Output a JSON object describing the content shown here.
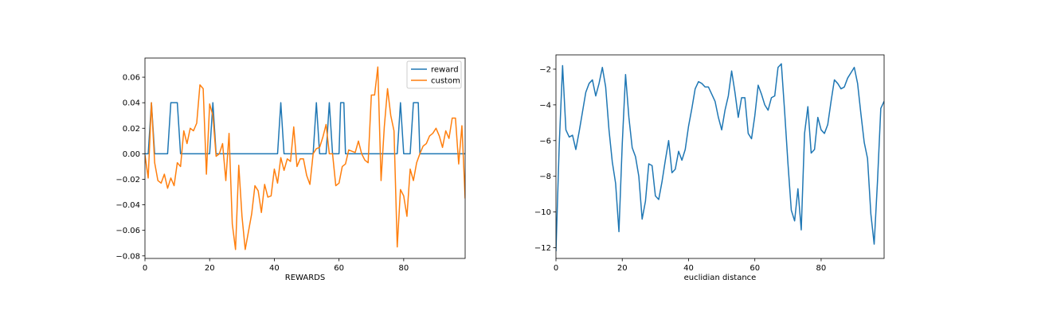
{
  "chart_data": [
    {
      "type": "line",
      "xlabel": "REWARDS",
      "ylabel": "",
      "xlim": [
        0,
        99
      ],
      "ylim": [
        -0.082,
        0.075
      ],
      "xticks": [
        0,
        20,
        40,
        60,
        80
      ],
      "yticks": [
        -0.08,
        -0.06,
        -0.04,
        -0.02,
        0.0,
        0.02,
        0.04,
        0.06
      ],
      "ytick_labels": [
        "−0.08",
        "−0.06",
        "−0.04",
        "−0.02",
        "0.00",
        "0.02",
        "0.04",
        "0.06"
      ],
      "legend": "upper right",
      "grid": false,
      "series": [
        {
          "name": "reward",
          "color": "#1f77b4",
          "points": [
            [
              0,
              0
            ],
            [
              1,
              0
            ],
            [
              2,
              0.04
            ],
            [
              3,
              0
            ],
            [
              7,
              0
            ],
            [
              8,
              0.04
            ],
            [
              10,
              0.04
            ],
            [
              11,
              0
            ],
            [
              20,
              0
            ],
            [
              21,
              0.04
            ],
            [
              22,
              0
            ],
            [
              41,
              0
            ],
            [
              42,
              0.04
            ],
            [
              43,
              0
            ],
            [
              52,
              0
            ],
            [
              53,
              0.04
            ],
            [
              54,
              0
            ],
            [
              56,
              0
            ],
            [
              57,
              0.04
            ],
            [
              58,
              0
            ],
            [
              60,
              0
            ],
            [
              60.5,
              0.04
            ],
            [
              61.5,
              0.04
            ],
            [
              62,
              0
            ],
            [
              78,
              0
            ],
            [
              79,
              0.04
            ],
            [
              80,
              0
            ],
            [
              82,
              0
            ],
            [
              83,
              0.04
            ],
            [
              84.5,
              0.04
            ],
            [
              85,
              0
            ],
            [
              99,
              0
            ]
          ]
        },
        {
          "name": "custom",
          "color": "#ff7f0e",
          "points": [
            [
              0,
              -0.001
            ],
            [
              1,
              -0.019
            ],
            [
              2,
              0.04
            ],
            [
              3,
              -0.007
            ],
            [
              4,
              -0.021
            ],
            [
              5,
              -0.023
            ],
            [
              6,
              -0.016
            ],
            [
              7,
              -0.027
            ],
            [
              8,
              -0.019
            ],
            [
              9,
              -0.025
            ],
            [
              10,
              -0.007
            ],
            [
              11,
              -0.01
            ],
            [
              12,
              0.018
            ],
            [
              13,
              0.008
            ],
            [
              14,
              0.02
            ],
            [
              15,
              0.018
            ],
            [
              16,
              0.024
            ],
            [
              17,
              0.054
            ],
            [
              18,
              0.051
            ],
            [
              19,
              -0.016
            ],
            [
              20,
              0.039
            ],
            [
              21,
              0.03
            ],
            [
              22,
              -0.002
            ],
            [
              23,
              0.0
            ],
            [
              24,
              0.008
            ],
            [
              25,
              -0.021
            ],
            [
              26,
              0.016
            ],
            [
              27,
              -0.055
            ],
            [
              28,
              -0.075
            ],
            [
              29,
              -0.009
            ],
            [
              30,
              -0.049
            ],
            [
              31,
              -0.075
            ],
            [
              32,
              -0.061
            ],
            [
              33,
              -0.047
            ],
            [
              34,
              -0.025
            ],
            [
              35,
              -0.029
            ],
            [
              36,
              -0.046
            ],
            [
              37,
              -0.024
            ],
            [
              38,
              -0.034
            ],
            [
              39,
              -0.033
            ],
            [
              40,
              -0.012
            ],
            [
              41,
              -0.023
            ],
            [
              42,
              -0.003
            ],
            [
              43,
              -0.013
            ],
            [
              44,
              -0.004
            ],
            [
              45,
              -0.006
            ],
            [
              46,
              0.021
            ],
            [
              47,
              -0.01
            ],
            [
              48,
              -0.004
            ],
            [
              49,
              -0.004
            ],
            [
              50,
              -0.017
            ],
            [
              51,
              -0.024
            ],
            [
              52,
              0.0
            ],
            [
              53,
              0.004
            ],
            [
              54,
              0.005
            ],
            [
              55,
              0.013
            ],
            [
              56,
              0.023
            ],
            [
              57,
              0.0
            ],
            [
              58,
              0.0
            ],
            [
              59,
              -0.025
            ],
            [
              60,
              -0.023
            ],
            [
              61,
              -0.01
            ],
            [
              62,
              -0.008
            ],
            [
              63,
              0.003
            ],
            [
              64,
              0.002
            ],
            [
              65,
              0.001
            ],
            [
              66,
              0.01
            ],
            [
              67,
              0.0
            ],
            [
              68,
              -0.005
            ],
            [
              69,
              -0.007
            ],
            [
              70,
              0.046
            ],
            [
              71,
              0.046
            ],
            [
              72,
              0.068
            ],
            [
              73,
              -0.021
            ],
            [
              74,
              0.021
            ],
            [
              75,
              0.051
            ],
            [
              76,
              0.03
            ],
            [
              77,
              0.018
            ],
            [
              78,
              -0.073
            ],
            [
              79,
              -0.028
            ],
            [
              80,
              -0.033
            ],
            [
              81,
              -0.049
            ],
            [
              82,
              -0.012
            ],
            [
              83,
              -0.021
            ],
            [
              84,
              -0.007
            ],
            [
              85,
              0.0
            ],
            [
              86,
              0.006
            ],
            [
              87,
              0.008
            ],
            [
              88,
              0.014
            ],
            [
              89,
              0.016
            ],
            [
              90,
              0.02
            ],
            [
              91,
              0.014
            ],
            [
              92,
              0.005
            ],
            [
              93,
              0.018
            ],
            [
              94,
              0.012
            ],
            [
              95,
              0.028
            ],
            [
              96,
              0.028
            ],
            [
              97,
              -0.008
            ],
            [
              98,
              0.022
            ],
            [
              99,
              -0.035
            ]
          ]
        }
      ]
    },
    {
      "type": "line",
      "xlabel": "euclidian distance",
      "ylabel": "",
      "xlim": [
        0,
        99
      ],
      "ylim": [
        -12.6,
        -1.2
      ],
      "xticks": [
        0,
        20,
        40,
        60,
        80
      ],
      "yticks": [
        -12,
        -10,
        -8,
        -6,
        -4,
        -2
      ],
      "ytick_labels": [
        "−12",
        "−10",
        "−8",
        "−6",
        "−4",
        "−2"
      ],
      "grid": false,
      "series": [
        {
          "color": "#1f77b4",
          "points": [
            [
              0,
              -12.2
            ],
            [
              1,
              -6.2
            ],
            [
              2,
              -1.8
            ],
            [
              3,
              -5.4
            ],
            [
              4,
              -5.8
            ],
            [
              5,
              -5.7
            ],
            [
              6,
              -6.5
            ],
            [
              7,
              -5.5
            ],
            [
              8,
              -4.4
            ],
            [
              9,
              -3.3
            ],
            [
              10,
              -2.8
            ],
            [
              11,
              -2.6
            ],
            [
              12,
              -3.5
            ],
            [
              13,
              -2.8
            ],
            [
              14,
              -1.9
            ],
            [
              15,
              -3.0
            ],
            [
              16,
              -5.4
            ],
            [
              17,
              -7.2
            ],
            [
              18,
              -8.4
            ],
            [
              19,
              -11.1
            ],
            [
              20,
              -6.2
            ],
            [
              21,
              -2.3
            ],
            [
              22,
              -4.7
            ],
            [
              23,
              -6.4
            ],
            [
              24,
              -6.9
            ],
            [
              25,
              -8.0
            ],
            [
              26,
              -10.4
            ],
            [
              27,
              -9.4
            ],
            [
              28,
              -7.3
            ],
            [
              29,
              -7.4
            ],
            [
              30,
              -9.1
            ],
            [
              31,
              -9.3
            ],
            [
              32,
              -8.3
            ],
            [
              33,
              -7.1
            ],
            [
              34,
              -6.0
            ],
            [
              35,
              -7.8
            ],
            [
              36,
              -7.6
            ],
            [
              37,
              -6.6
            ],
            [
              38,
              -7.1
            ],
            [
              39,
              -6.5
            ],
            [
              40,
              -5.2
            ],
            [
              41,
              -4.2
            ],
            [
              42,
              -3.1
            ],
            [
              43,
              -2.7
            ],
            [
              44,
              -2.8
            ],
            [
              45,
              -3.0
            ],
            [
              46,
              -3.0
            ],
            [
              47,
              -3.4
            ],
            [
              48,
              -3.8
            ],
            [
              49,
              -4.7
            ],
            [
              50,
              -5.4
            ],
            [
              51,
              -4.3
            ],
            [
              52,
              -3.5
            ],
            [
              53,
              -2.1
            ],
            [
              54,
              -3.3
            ],
            [
              55,
              -4.7
            ],
            [
              56,
              -3.6
            ],
            [
              57,
              -3.6
            ],
            [
              58,
              -5.6
            ],
            [
              59,
              -5.9
            ],
            [
              60,
              -4.6
            ],
            [
              61,
              -2.9
            ],
            [
              62,
              -3.4
            ],
            [
              63,
              -4.0
            ],
            [
              64,
              -4.3
            ],
            [
              65,
              -3.6
            ],
            [
              66,
              -3.5
            ],
            [
              67,
              -1.9
            ],
            [
              68,
              -1.7
            ],
            [
              69,
              -4.4
            ],
            [
              70,
              -7.3
            ],
            [
              71,
              -9.9
            ],
            [
              72,
              -10.5
            ],
            [
              73,
              -8.7
            ],
            [
              74,
              -11.0
            ],
            [
              75,
              -5.6
            ],
            [
              76,
              -4.1
            ],
            [
              77,
              -6.7
            ],
            [
              78,
              -6.5
            ],
            [
              79,
              -4.7
            ],
            [
              80,
              -5.4
            ],
            [
              81,
              -5.6
            ],
            [
              82,
              -5.1
            ],
            [
              83,
              -3.8
            ],
            [
              84,
              -2.6
            ],
            [
              85,
              -2.8
            ],
            [
              86,
              -3.1
            ],
            [
              87,
              -3.0
            ],
            [
              88,
              -2.5
            ],
            [
              89,
              -2.2
            ],
            [
              90,
              -1.9
            ],
            [
              91,
              -2.8
            ],
            [
              92,
              -4.5
            ],
            [
              93,
              -6.1
            ],
            [
              94,
              -7.0
            ],
            [
              95,
              -10.1
            ],
            [
              96,
              -11.8
            ],
            [
              97,
              -8.3
            ],
            [
              98,
              -4.2
            ],
            [
              99,
              -3.8
            ]
          ]
        }
      ]
    }
  ]
}
